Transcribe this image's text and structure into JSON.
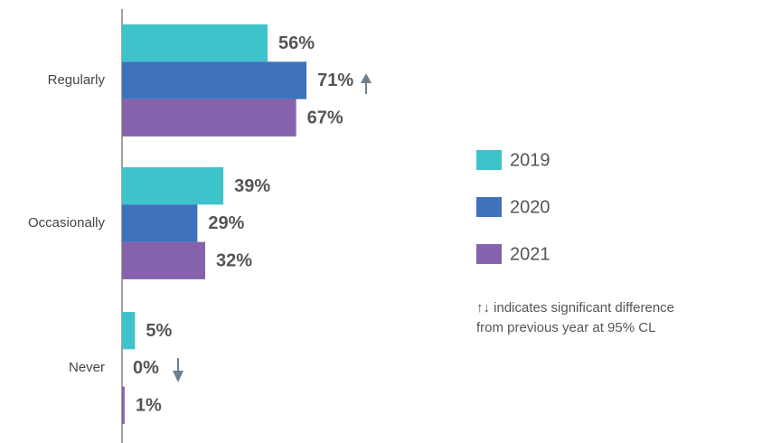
{
  "chart_data": {
    "type": "bar",
    "orientation": "horizontal",
    "categories": [
      "Regularly",
      "Occasionally",
      "Never"
    ],
    "series": [
      {
        "name": "2019",
        "color": "#3ec3cb",
        "values": [
          56,
          39,
          5
        ],
        "value_labels": [
          "56%",
          "39%",
          "5%"
        ]
      },
      {
        "name": "2020",
        "color": "#3e72bd",
        "values": [
          71,
          29,
          0
        ],
        "value_labels": [
          "71%",
          "29%",
          "0%"
        ]
      },
      {
        "name": "2021",
        "color": "#8562ab",
        "values": [
          67,
          32,
          1
        ],
        "value_labels": [
          "67%",
          "32%",
          "1%"
        ]
      }
    ],
    "xlim": [
      0,
      100
    ],
    "legend": "right",
    "note": [
      "↑↓  indicates significant difference",
      "from previous year at 95% CL"
    ]
  }
}
